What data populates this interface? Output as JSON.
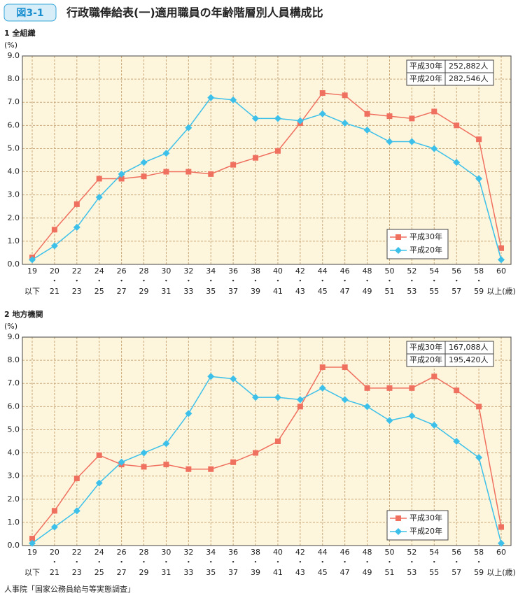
{
  "header": {
    "badge": "図3-1",
    "title": "行政職俸給表(一)適用職員の年齢階層別人員構成比"
  },
  "chart_data": [
    {
      "type": "line",
      "title": "1 全組織",
      "y_label": "(%)",
      "categories": [
        [
          "19",
          "以下"
        ],
        [
          "20",
          "・",
          "21"
        ],
        [
          "22",
          "・",
          "23"
        ],
        [
          "24",
          "・",
          "25"
        ],
        [
          "26",
          "・",
          "27"
        ],
        [
          "28",
          "・",
          "29"
        ],
        [
          "30",
          "・",
          "31"
        ],
        [
          "32",
          "・",
          "33"
        ],
        [
          "34",
          "・",
          "35"
        ],
        [
          "36",
          "・",
          "37"
        ],
        [
          "38",
          "・",
          "39"
        ],
        [
          "40",
          "・",
          "41"
        ],
        [
          "42",
          "・",
          "43"
        ],
        [
          "44",
          "・",
          "45"
        ],
        [
          "46",
          "・",
          "47"
        ],
        [
          "48",
          "・",
          "49"
        ],
        [
          "50",
          "・",
          "51"
        ],
        [
          "52",
          "・",
          "53"
        ],
        [
          "54",
          "・",
          "55"
        ],
        [
          "56",
          "・",
          "57"
        ],
        [
          "58",
          "・",
          "59"
        ],
        [
          "60",
          "以上(歳)"
        ]
      ],
      "series": [
        {
          "name": "平成30年",
          "color": "#f07060",
          "marker": "square",
          "values": [
            0.3,
            1.5,
            2.6,
            3.7,
            3.7,
            3.8,
            4.0,
            4.0,
            3.9,
            4.3,
            4.6,
            4.9,
            6.1,
            7.4,
            7.3,
            6.5,
            6.4,
            6.3,
            6.6,
            6.0,
            5.4,
            0.7
          ]
        },
        {
          "name": "平成20年",
          "color": "#3cc0ea",
          "marker": "diamond",
          "values": [
            0.2,
            0.8,
            1.6,
            2.9,
            3.9,
            4.4,
            4.8,
            5.9,
            7.2,
            7.1,
            6.3,
            6.3,
            6.2,
            6.5,
            6.1,
            5.8,
            5.3,
            5.3,
            5.0,
            4.4,
            3.7,
            0.2
          ]
        }
      ],
      "ylim": [
        0,
        9
      ],
      "yticks": [
        {
          "value": 0,
          "label": "0.0"
        },
        {
          "value": 1,
          "label": "1.0"
        },
        {
          "value": 2,
          "label": "2.0"
        },
        {
          "value": 3,
          "label": "3.0"
        },
        {
          "value": 4,
          "label": "4.0"
        },
        {
          "value": 5,
          "label": "5.0"
        },
        {
          "value": 6,
          "label": "6.0"
        },
        {
          "value": 7,
          "label": "7.0"
        },
        {
          "value": 8,
          "label": "8.0"
        },
        {
          "value": 9,
          "label": "9.0"
        }
      ],
      "grid": true,
      "legend": "lower right",
      "table": [
        [
          "平成30年",
          "252,882人"
        ],
        [
          "平成20年",
          "282,546人"
        ]
      ]
    },
    {
      "type": "line",
      "title": "2 地方機関",
      "y_label": "(%)",
      "categories": [
        [
          "19",
          "以下"
        ],
        [
          "20",
          "・",
          "21"
        ],
        [
          "22",
          "・",
          "23"
        ],
        [
          "24",
          "・",
          "25"
        ],
        [
          "26",
          "・",
          "27"
        ],
        [
          "28",
          "・",
          "29"
        ],
        [
          "30",
          "・",
          "31"
        ],
        [
          "32",
          "・",
          "33"
        ],
        [
          "34",
          "・",
          "35"
        ],
        [
          "36",
          "・",
          "37"
        ],
        [
          "38",
          "・",
          "39"
        ],
        [
          "40",
          "・",
          "41"
        ],
        [
          "42",
          "・",
          "43"
        ],
        [
          "44",
          "・",
          "45"
        ],
        [
          "46",
          "・",
          "47"
        ],
        [
          "48",
          "・",
          "49"
        ],
        [
          "50",
          "・",
          "51"
        ],
        [
          "52",
          "・",
          "53"
        ],
        [
          "54",
          "・",
          "55"
        ],
        [
          "56",
          "・",
          "57"
        ],
        [
          "58",
          "・",
          "59"
        ],
        [
          "60",
          "以上(歳)"
        ]
      ],
      "series": [
        {
          "name": "平成30年",
          "color": "#f07060",
          "marker": "square",
          "values": [
            0.3,
            1.5,
            2.9,
            3.9,
            3.5,
            3.4,
            3.5,
            3.3,
            3.3,
            3.6,
            4.0,
            4.5,
            6.0,
            7.7,
            7.7,
            6.8,
            6.8,
            6.8,
            7.3,
            6.7,
            6.0,
            0.8
          ]
        },
        {
          "name": "平成20年",
          "color": "#3cc0ea",
          "marker": "diamond",
          "values": [
            0.1,
            0.8,
            1.5,
            2.7,
            3.6,
            4.0,
            4.4,
            5.7,
            7.3,
            7.2,
            6.4,
            6.4,
            6.3,
            6.8,
            6.3,
            6.0,
            5.4,
            5.6,
            5.2,
            4.5,
            3.8,
            0.1
          ]
        }
      ],
      "ylim": [
        0,
        9
      ],
      "yticks": [
        {
          "value": 0,
          "label": "0.0"
        },
        {
          "value": 1,
          "label": "1.0"
        },
        {
          "value": 2,
          "label": "2.0"
        },
        {
          "value": 3,
          "label": "3.0"
        },
        {
          "value": 4,
          "label": "4.0"
        },
        {
          "value": 5,
          "label": "5.0"
        },
        {
          "value": 6,
          "label": "6.0"
        },
        {
          "value": 7,
          "label": "7.0"
        },
        {
          "value": 8,
          "label": "8.0"
        },
        {
          "value": 9,
          "label": "9.0"
        }
      ],
      "grid": true,
      "legend": "lower right",
      "table": [
        [
          "平成30年",
          "167,088人"
        ],
        [
          "平成20年",
          "195,420人"
        ]
      ]
    }
  ],
  "source": "人事院「国家公務員給与等実態調査」"
}
